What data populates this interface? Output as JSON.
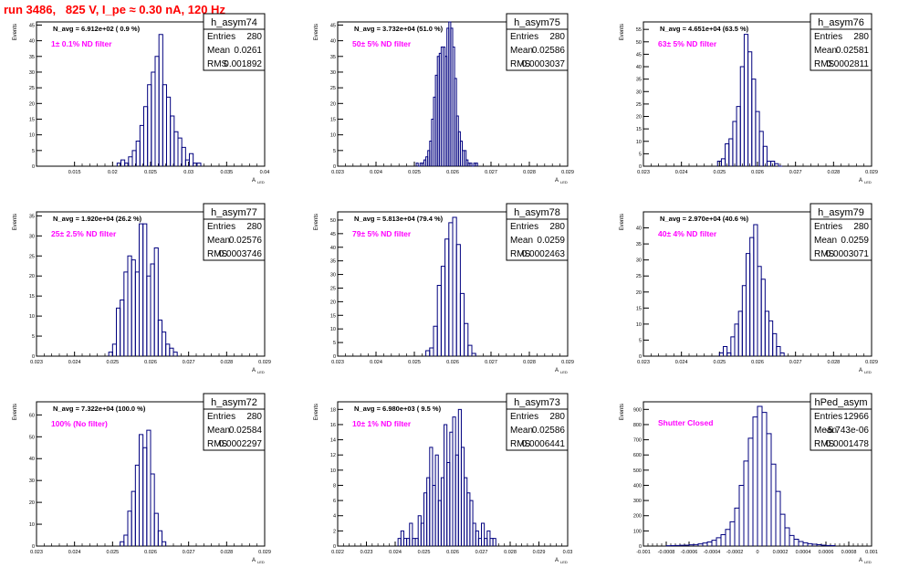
{
  "page_title": "run 3486,   825 V, I_pe ≈ 0.30 nA, 120 Hz",
  "common": {
    "ylabel": "Events",
    "xlabel": "A",
    "xlabel_sub": "LED",
    "stat_labels": [
      "Entries",
      "Mean",
      "RMS"
    ],
    "colors": {
      "hist_line": "#00007f",
      "filter_label": "#ff00ff",
      "title": "#ff0000",
      "axis": "#000000"
    }
  },
  "chart_data": [
    {
      "type": "histogram",
      "name": "h_asym74",
      "navg": "N_avg = 6.912e+02 ( 0.9 %)",
      "filter": "1± 0.1% ND filter",
      "stats": [
        "280",
        "0.0261",
        "0.001892"
      ],
      "xlim": [
        0.01,
        0.04
      ],
      "ylim": [
        0,
        46
      ],
      "xticks": [
        "0.015",
        "0.02",
        "0.025",
        "0.03",
        "0.035",
        "0.04"
      ],
      "xtick_values": [
        0.015,
        0.02,
        0.025,
        0.03,
        0.035,
        0.04
      ],
      "yticks": [
        "0",
        "5",
        "10",
        "15",
        "20",
        "25",
        "30",
        "35",
        "40",
        "45"
      ],
      "ytick_values": [
        0,
        5,
        10,
        15,
        20,
        25,
        30,
        35,
        40,
        45
      ],
      "bin_edges": [
        0.0206,
        0.0211,
        0.0216,
        0.0221,
        0.0226,
        0.0231,
        0.0236,
        0.0241,
        0.0246,
        0.0251,
        0.0256,
        0.0261,
        0.0266,
        0.0271,
        0.0276,
        0.0281,
        0.0286,
        0.0291,
        0.0296,
        0.0301,
        0.0306,
        0.0311,
        0.0316
      ],
      "counts": [
        1,
        2,
        1,
        3,
        5,
        8,
        13,
        19,
        26,
        30,
        35,
        42,
        26,
        22,
        16,
        11,
        9,
        6,
        2,
        4,
        1,
        1
      ]
    },
    {
      "type": "histogram",
      "name": "h_asym75",
      "navg": "N_avg = 3.732e+04 (51.0 %)",
      "filter": "50± 5% ND filter",
      "stats": [
        "280",
        "0.02586",
        "0.0003037"
      ],
      "xlim": [
        0.023,
        0.029
      ],
      "ylim": [
        0,
        46
      ],
      "xticks": [
        "0.023",
        "0.024",
        "0.025",
        "0.026",
        "0.027",
        "0.028",
        "0.029"
      ],
      "xtick_values": [
        0.023,
        0.024,
        0.025,
        0.026,
        0.027,
        0.028,
        0.029
      ],
      "yticks": [
        "0",
        "5",
        "10",
        "15",
        "20",
        "25",
        "30",
        "35",
        "40",
        "45"
      ],
      "ytick_values": [
        0,
        5,
        10,
        15,
        20,
        25,
        30,
        35,
        40,
        45
      ],
      "bin_edges": [
        0.02505,
        0.0251,
        0.02515,
        0.0252,
        0.02525,
        0.0253,
        0.02535,
        0.0254,
        0.02545,
        0.0255,
        0.02555,
        0.0256,
        0.02565,
        0.0257,
        0.02575,
        0.0258,
        0.02585,
        0.0259,
        0.02595,
        0.026,
        0.02605,
        0.0261,
        0.02615,
        0.0262,
        0.02625,
        0.0263,
        0.02635,
        0.0264,
        0.02645,
        0.0265,
        0.02655,
        0.0266,
        0.02665
      ],
      "counts": [
        1,
        0,
        1,
        1,
        2,
        3,
        5,
        8,
        15,
        22,
        29,
        35,
        36,
        38,
        38,
        35,
        44,
        46,
        44,
        38,
        28,
        16,
        11,
        8,
        5,
        5,
        2,
        1,
        1,
        0,
        1,
        1
      ]
    },
    {
      "type": "histogram",
      "name": "h_asym76",
      "navg": "N_avg = 4.651e+04 (63.5 %)",
      "filter": "63± 5% ND filter",
      "stats": [
        "280",
        "0.02581",
        "0.0002811"
      ],
      "xlim": [
        0.023,
        0.029
      ],
      "ylim": [
        0,
        58
      ],
      "xticks": [
        "0.023",
        "0.024",
        "0.025",
        "0.026",
        "0.027",
        "0.028",
        "0.029"
      ],
      "xtick_values": [
        0.023,
        0.024,
        0.025,
        0.026,
        0.027,
        0.028,
        0.029
      ],
      "yticks": [
        "0",
        "5",
        "10",
        "15",
        "20",
        "25",
        "30",
        "35",
        "40",
        "45",
        "50",
        "55"
      ],
      "ytick_values": [
        0,
        5,
        10,
        15,
        20,
        25,
        30,
        35,
        40,
        45,
        50,
        55
      ],
      "bin_edges": [
        0.02495,
        0.02505,
        0.02515,
        0.02525,
        0.02535,
        0.02545,
        0.02555,
        0.02565,
        0.02575,
        0.02585,
        0.02595,
        0.02605,
        0.02615,
        0.02625,
        0.02635,
        0.02645,
        0.02655,
        0.02665
      ],
      "counts": [
        2,
        3,
        9,
        11,
        18,
        24,
        40,
        53,
        46,
        35,
        22,
        14,
        8,
        2,
        2,
        1,
        0
      ]
    },
    {
      "type": "histogram",
      "name": "h_asym77",
      "navg": "N_avg = 1.920e+04 (26.2 %)",
      "filter": "25± 2.5% ND filter",
      "stats": [
        "280",
        "0.02576",
        "0.0003746"
      ],
      "xlim": [
        0.023,
        0.029
      ],
      "ylim": [
        0,
        36
      ],
      "xticks": [
        "0.023",
        "0.024",
        "0.025",
        "0.026",
        "0.027",
        "0.028",
        "0.029"
      ],
      "xtick_values": [
        0.023,
        0.024,
        0.025,
        0.026,
        0.027,
        0.028,
        0.029
      ],
      "yticks": [
        "0",
        "5",
        "10",
        "15",
        "20",
        "25",
        "30",
        "35"
      ],
      "ytick_values": [
        0,
        5,
        10,
        15,
        20,
        25,
        30,
        35
      ],
      "bin_edges": [
        0.0249,
        0.025,
        0.0251,
        0.0252,
        0.0253,
        0.0254,
        0.0255,
        0.0256,
        0.0257,
        0.0258,
        0.0259,
        0.026,
        0.0261,
        0.0262,
        0.0263,
        0.0264,
        0.0265,
        0.0266,
        0.0267
      ],
      "counts": [
        1,
        3,
        12,
        14,
        21,
        25,
        24,
        21,
        33,
        33,
        20,
        23,
        27,
        9,
        6,
        3,
        2,
        1
      ]
    },
    {
      "type": "histogram",
      "name": "h_asym78",
      "navg": "N_avg = 5.813e+04 (79.4 %)",
      "filter": "79± 5% ND filter",
      "stats": [
        "280",
        "0.0259",
        "0.0002463"
      ],
      "xlim": [
        0.023,
        0.029
      ],
      "ylim": [
        0,
        53
      ],
      "xticks": [
        "0.023",
        "0.024",
        "0.025",
        "0.026",
        "0.027",
        "0.028",
        "0.029"
      ],
      "xtick_values": [
        0.023,
        0.024,
        0.025,
        0.026,
        0.027,
        0.028,
        0.029
      ],
      "yticks": [
        "0",
        "5",
        "10",
        "15",
        "20",
        "25",
        "30",
        "35",
        "40",
        "45",
        "50"
      ],
      "ytick_values": [
        0,
        5,
        10,
        15,
        20,
        25,
        30,
        35,
        40,
        45,
        50
      ],
      "bin_edges": [
        0.0253,
        0.0254,
        0.0255,
        0.0256,
        0.0257,
        0.0258,
        0.0259,
        0.026,
        0.0261,
        0.0262,
        0.0263,
        0.0264,
        0.0265,
        0.0266
      ],
      "counts": [
        2,
        3,
        11,
        26,
        33,
        43,
        49,
        51,
        41,
        23,
        12,
        4,
        1
      ]
    },
    {
      "type": "histogram",
      "name": "h_asym79",
      "navg": "N_avg = 2.970e+04 (40.6 %)",
      "filter": "40± 4% ND filter",
      "stats": [
        "280",
        "0.0259",
        "0.0003071"
      ],
      "xlim": [
        0.023,
        0.029
      ],
      "ylim": [
        0,
        45
      ],
      "xticks": [
        "0.023",
        "0.024",
        "0.025",
        "0.026",
        "0.027",
        "0.028",
        "0.029"
      ],
      "xtick_values": [
        0.023,
        0.024,
        0.025,
        0.026,
        0.027,
        0.028,
        0.029
      ],
      "yticks": [
        "0",
        "5",
        "10",
        "15",
        "20",
        "25",
        "30",
        "35",
        "40"
      ],
      "ytick_values": [
        0,
        5,
        10,
        15,
        20,
        25,
        30,
        35,
        40
      ],
      "bin_edges": [
        0.025,
        0.0251,
        0.0252,
        0.0253,
        0.0254,
        0.0255,
        0.0256,
        0.0257,
        0.0258,
        0.0259,
        0.026,
        0.0261,
        0.0262,
        0.0263,
        0.0264,
        0.0265,
        0.0266,
        0.0267
      ],
      "counts": [
        1,
        3,
        1,
        6,
        10,
        14,
        22,
        32,
        37,
        41,
        28,
        24,
        14,
        11,
        7,
        3,
        1
      ]
    },
    {
      "type": "histogram",
      "name": "h_asym72",
      "navg": "N_avg = 7.322e+04 (100.0 %)",
      "filter": "100% (No filter)",
      "stats": [
        "280",
        "0.02584",
        "0.0002297"
      ],
      "xlim": [
        0.023,
        0.029
      ],
      "ylim": [
        0,
        66
      ],
      "xticks": [
        "0.023",
        "0.024",
        "0.025",
        "0.026",
        "0.027",
        "0.028",
        "0.029"
      ],
      "xtick_values": [
        0.023,
        0.024,
        0.025,
        0.026,
        0.027,
        0.028,
        0.029
      ],
      "yticks": [
        "0",
        "10",
        "20",
        "30",
        "40",
        "50",
        "60"
      ],
      "ytick_values": [
        0,
        10,
        20,
        30,
        40,
        50,
        60
      ],
      "bin_edges": [
        0.0252,
        0.0253,
        0.0254,
        0.0255,
        0.0256,
        0.0257,
        0.0258,
        0.0259,
        0.026,
        0.0261,
        0.0262,
        0.0263,
        0.0264
      ],
      "counts": [
        2,
        5,
        16,
        25,
        37,
        51,
        45,
        53,
        33,
        15,
        7,
        2
      ]
    },
    {
      "type": "histogram",
      "name": "h_asym73",
      "navg": "N_avg = 6.980e+03 ( 9.5 %)",
      "filter": "10± 1% ND filter",
      "stats": [
        "280",
        "0.02586",
        "0.0006441"
      ],
      "xlim": [
        0.022,
        0.03
      ],
      "ylim": [
        0,
        19
      ],
      "xticks": [
        "0.022",
        "0.023",
        "0.024",
        "0.025",
        "0.026",
        "0.027",
        "0.028",
        "0.029",
        "0.03"
      ],
      "xtick_values": [
        0.022,
        0.023,
        0.024,
        0.025,
        0.026,
        0.027,
        0.028,
        0.029,
        0.03
      ],
      "yticks": [
        "0",
        "2",
        "4",
        "6",
        "8",
        "10",
        "12",
        "14",
        "16",
        "18"
      ],
      "ytick_values": [
        0,
        2,
        4,
        6,
        8,
        10,
        12,
        14,
        16,
        18
      ],
      "bin_edges": [
        0.0241,
        0.0242,
        0.0243,
        0.0244,
        0.0245,
        0.0246,
        0.0247,
        0.0248,
        0.0249,
        0.025,
        0.0251,
        0.0252,
        0.0253,
        0.0254,
        0.0255,
        0.0256,
        0.0257,
        0.0258,
        0.0259,
        0.026,
        0.0261,
        0.0262,
        0.0263,
        0.0264,
        0.0265,
        0.0266,
        0.0267,
        0.0268,
        0.0269,
        0.027,
        0.0271,
        0.0272,
        0.0273,
        0.0274,
        0.0275
      ],
      "counts": [
        1,
        2,
        1,
        1,
        3,
        1,
        1,
        4,
        3,
        7,
        9,
        13,
        8,
        12,
        6,
        9,
        16,
        11,
        15,
        17,
        12,
        18,
        13,
        9,
        7,
        6,
        3,
        2,
        1,
        3,
        1,
        2,
        1,
        1
      ]
    },
    {
      "type": "histogram",
      "name": "hPed_asym",
      "navg": "",
      "filter": "Shutter Closed",
      "stats": [
        "12966",
        "-5.743e-06",
        "0.0001478"
      ],
      "xlim": [
        -0.001,
        0.001
      ],
      "ylim": [
        0,
        950
      ],
      "xticks": [
        "-0.001",
        "-0.0008",
        "-0.0006",
        "-0.0004",
        "-0.0002",
        "0",
        "0.0002",
        "0.0004",
        "0.0006",
        "0.0008",
        "0.001"
      ],
      "xtick_values": [
        -0.001,
        -0.0008,
        -0.0006,
        -0.0004,
        -0.0002,
        0,
        0.0002,
        0.0004,
        0.0006,
        0.0008,
        0.001
      ],
      "yticks": [
        "0",
        "100",
        "200",
        "300",
        "400",
        "500",
        "600",
        "700",
        "800",
        "900"
      ],
      "ytick_values": [
        0,
        100,
        200,
        300,
        400,
        500,
        600,
        700,
        800,
        900
      ],
      "bin_edges": [
        -0.0008,
        -0.00076,
        -0.00072,
        -0.00068,
        -0.00064,
        -0.0006,
        -0.00056,
        -0.00052,
        -0.00048,
        -0.00044,
        -0.0004,
        -0.00036,
        -0.00032,
        -0.00028,
        -0.00024,
        -0.0002,
        -0.00016,
        -0.00012,
        -8e-05,
        -4e-05,
        0,
        4e-05,
        8e-05,
        0.00012,
        0.00016,
        0.0002,
        0.00024,
        0.00028,
        0.00032,
        0.00036,
        0.0004,
        0.00044,
        0.00048,
        0.00052,
        0.00056,
        0.0006,
        0.00064,
        0.00068
      ],
      "counts": [
        2,
        3,
        4,
        5,
        6,
        8,
        10,
        14,
        20,
        27,
        38,
        55,
        75,
        110,
        160,
        250,
        400,
        560,
        710,
        850,
        920,
        880,
        740,
        540,
        360,
        210,
        120,
        70,
        45,
        30,
        22,
        16,
        12,
        9,
        6,
        4,
        3
      ]
    }
  ]
}
